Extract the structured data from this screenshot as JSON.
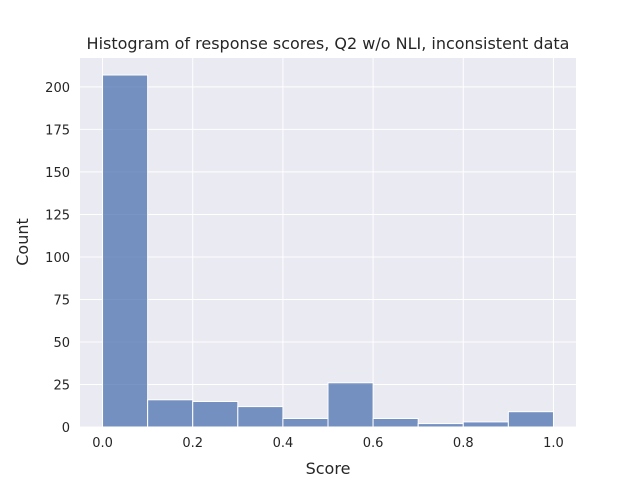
{
  "chart_data": {
    "type": "histogram",
    "title": "Histogram of response scores, Q2 w/o NLI, inconsistent data",
    "x_label": "Score",
    "y_label": "Count",
    "bins": [
      0.0,
      0.1,
      0.2,
      0.3,
      0.4,
      0.5,
      0.6,
      0.7,
      0.8,
      0.9,
      1.0
    ],
    "values": [
      207,
      16,
      15,
      12,
      5,
      26,
      5,
      2,
      3,
      9
    ],
    "color": "#4c72b0",
    "xlim": [
      -0.05,
      1.05
    ],
    "ylim": [
      0,
      217
    ],
    "xticks": [
      {
        "value": 0,
        "label": "0.0"
      },
      0.2,
      0.4,
      0.6,
      0.8,
      {
        "value": 1,
        "label": "1.0"
      }
    ],
    "yticks": [
      0,
      25,
      50,
      75,
      100,
      125,
      150,
      175,
      200
    ],
    "grid": true
  }
}
